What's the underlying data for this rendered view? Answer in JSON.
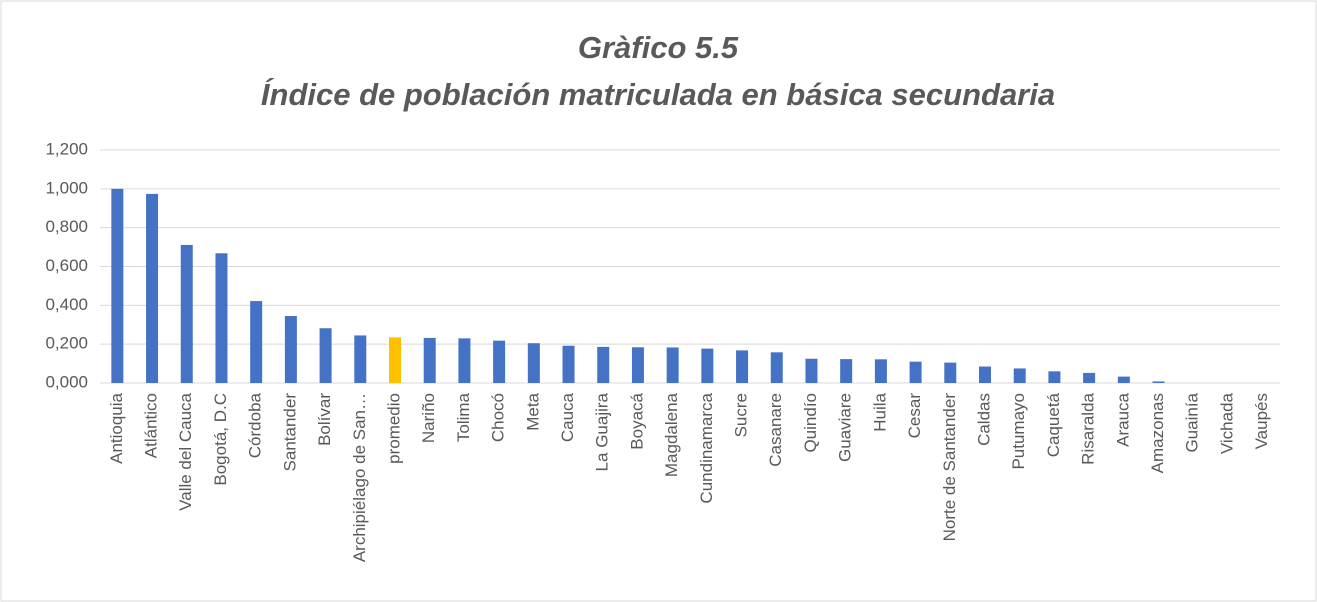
{
  "chart_data": {
    "type": "bar",
    "title": "Gràfico 5.5",
    "subtitle": "Índice de población matriculada en básica secundaria",
    "categories": [
      "Antioquia",
      "Atlántico",
      "Valle del Cauca",
      "Bogotá, D.C",
      "Córdoba",
      "Santander",
      "Bolívar",
      "Archipiélago de San…",
      "promedio",
      "Nariño",
      "Tolima",
      "Chocó",
      "Meta",
      "Cauca",
      "La Guajira",
      "Boyacá",
      "Magdalena",
      "Cundinamarca",
      "Sucre",
      "Casanare",
      "Quindío",
      "Guaviare",
      "Huila",
      "Cesar",
      "Norte de Santander",
      "Caldas",
      "Putumayo",
      "Caquetá",
      "Risaralda",
      "Arauca",
      "Amazonas",
      "Guainía",
      "Vichada",
      "Vaupés"
    ],
    "values": [
      1.0,
      0.974,
      0.711,
      0.668,
      0.422,
      0.345,
      0.282,
      0.245,
      0.235,
      0.232,
      0.23,
      0.218,
      0.205,
      0.192,
      0.186,
      0.184,
      0.183,
      0.177,
      0.168,
      0.158,
      0.125,
      0.123,
      0.122,
      0.11,
      0.105,
      0.085,
      0.075,
      0.06,
      0.052,
      0.033,
      0.008,
      0,
      0,
      0
    ],
    "colors": [
      "#4472c4",
      "#4472c4",
      "#4472c4",
      "#4472c4",
      "#4472c4",
      "#4472c4",
      "#4472c4",
      "#4472c4",
      "#ffc000",
      "#4472c4",
      "#4472c4",
      "#4472c4",
      "#4472c4",
      "#4472c4",
      "#4472c4",
      "#4472c4",
      "#4472c4",
      "#4472c4",
      "#4472c4",
      "#4472c4",
      "#4472c4",
      "#4472c4",
      "#4472c4",
      "#4472c4",
      "#4472c4",
      "#4472c4",
      "#4472c4",
      "#4472c4",
      "#4472c4",
      "#4472c4",
      "#4472c4",
      "#4472c4",
      "#4472c4",
      "#4472c4"
    ],
    "ylim": [
      0,
      1.2
    ],
    "yticks": [
      {
        "value": 0,
        "label": "0,000"
      },
      {
        "value": 0.2,
        "label": "0,200"
      },
      {
        "value": 0.4,
        "label": "0,400"
      },
      {
        "value": 0.6,
        "label": "0,600"
      },
      {
        "value": 0.8,
        "label": "0,800"
      },
      {
        "value": 1.0,
        "label": "1,000"
      },
      {
        "value": 1.2,
        "label": "1,200"
      }
    ],
    "grid": true
  }
}
